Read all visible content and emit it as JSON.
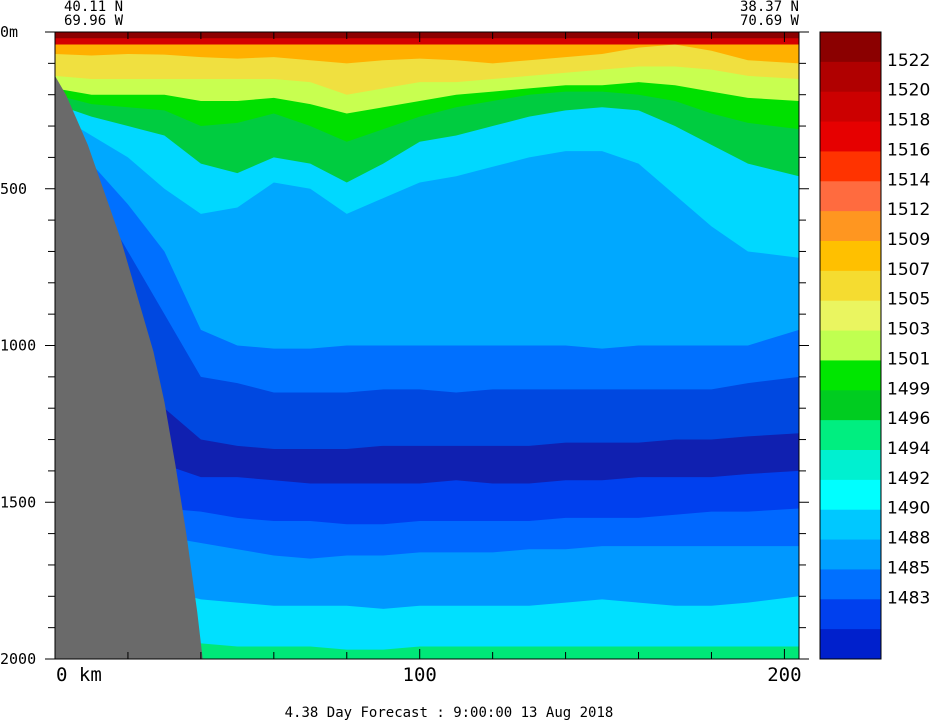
{
  "chart_data": {
    "type": "heatmap",
    "start_lat": "40.11 N",
    "start_lon": "69.96 W",
    "end_lat": "38.37 N",
    "end_lon": "70.69 W",
    "xlabel": "km",
    "x_ticks": [
      0,
      100,
      200
    ],
    "x_tick_labels": [
      "0 km",
      "100",
      "200"
    ],
    "xlim": [
      0,
      204
    ],
    "ylim": [
      0,
      2000
    ],
    "y_ticks": [
      0,
      500,
      1000,
      1500,
      2000
    ],
    "y_tick_labels": [
      "0m",
      "500",
      "1000",
      "1500",
      "2000"
    ],
    "footer": "4.38 Day Forecast :  9:00:00  13 Aug 2018",
    "colorbar_labels": [
      "1522",
      "1520",
      "1518",
      "1516",
      "1514",
      "1512",
      "1509",
      "1507",
      "1505",
      "1503",
      "1501",
      "1499",
      "1496",
      "1494",
      "1492",
      "1490",
      "1488",
      "1485",
      "1483"
    ],
    "colorbar_colors": [
      "#8b0000",
      "#b00000",
      "#cc0000",
      "#e60000",
      "#ff3300",
      "#ff6b3f",
      "#ff9620",
      "#ffc000",
      "#f5dc30",
      "#eaf560",
      "#c0ff50",
      "#00e600",
      "#00cc20",
      "#00ee80",
      "#00f0d0",
      "#00ffff",
      "#00c8ff",
      "#00a0ff",
      "#0070ff",
      "#0040ee",
      "#0020cc"
    ],
    "seafloor_color": "#6a6a6a",
    "sections": [
      {
        "x": [
          0,
          10,
          20,
          30,
          40,
          50,
          60,
          70,
          80,
          90,
          100,
          110,
          120,
          130,
          140,
          150,
          160,
          170,
          180,
          190,
          204
        ],
        "isolines_depth": [
          [
            20,
            20,
            20,
            20,
            20,
            20,
            20,
            20,
            20,
            20,
            20,
            20,
            20,
            20,
            20,
            20,
            20,
            20,
            20,
            20,
            20
          ],
          [
            40,
            40,
            40,
            40,
            40,
            40,
            40,
            40,
            40,
            40,
            40,
            40,
            40,
            40,
            40,
            40,
            40,
            40,
            40,
            40,
            40
          ],
          [
            70,
            75,
            70,
            72,
            80,
            85,
            80,
            90,
            100,
            90,
            85,
            90,
            100,
            90,
            80,
            70,
            50,
            40,
            60,
            90,
            100
          ],
          [
            140,
            150,
            150,
            150,
            150,
            150,
            150,
            160,
            200,
            180,
            160,
            160,
            150,
            140,
            130,
            120,
            110,
            110,
            120,
            140,
            150
          ],
          [
            180,
            200,
            200,
            200,
            220,
            220,
            210,
            230,
            260,
            240,
            220,
            200,
            190,
            180,
            170,
            170,
            160,
            170,
            190,
            210,
            220
          ],
          [
            200,
            230,
            240,
            250,
            300,
            290,
            260,
            300,
            350,
            310,
            270,
            240,
            220,
            200,
            190,
            190,
            200,
            220,
            260,
            290,
            310
          ],
          [
            230,
            270,
            300,
            330,
            420,
            450,
            400,
            420,
            480,
            420,
            350,
            330,
            300,
            270,
            250,
            240,
            250,
            300,
            360,
            420,
            460
          ],
          [
            260,
            330,
            400,
            500,
            580,
            560,
            480,
            500,
            580,
            530,
            480,
            460,
            430,
            400,
            380,
            380,
            420,
            520,
            620,
            700,
            720
          ],
          [
            300,
            420,
            550,
            700,
            950,
            1000,
            1010,
            1010,
            1000,
            1000,
            1000,
            1000,
            1000,
            1000,
            1000,
            1010,
            1000,
            1000,
            1000,
            1000,
            950
          ],
          [
            320,
            500,
            700,
            900,
            1100,
            1120,
            1150,
            1150,
            1150,
            1140,
            1140,
            1150,
            1140,
            1140,
            1140,
            1140,
            1140,
            1140,
            1140,
            1120,
            1100
          ],
          [
            340,
            600,
            900,
            1200,
            1300,
            1320,
            1330,
            1330,
            1330,
            1320,
            1320,
            1320,
            1320,
            1320,
            1310,
            1310,
            1310,
            1300,
            1300,
            1290,
            1280
          ],
          [
            360,
            700,
            1100,
            1380,
            1420,
            1420,
            1430,
            1440,
            1440,
            1440,
            1440,
            1430,
            1440,
            1440,
            1430,
            1430,
            1420,
            1420,
            1420,
            1410,
            1400
          ],
          [
            380,
            800,
            1300,
            1520,
            1530,
            1550,
            1560,
            1560,
            1570,
            1570,
            1560,
            1560,
            1560,
            1560,
            1550,
            1550,
            1550,
            1540,
            1530,
            1530,
            1520
          ],
          [
            400,
            900,
            1400,
            1610,
            1630,
            1650,
            1670,
            1680,
            1670,
            1670,
            1660,
            1660,
            1660,
            1650,
            1650,
            1640,
            1640,
            1640,
            1640,
            1640,
            1640
          ],
          [
            420,
            1000,
            1500,
            1780,
            1810,
            1820,
            1830,
            1830,
            1830,
            1840,
            1830,
            1830,
            1830,
            1830,
            1820,
            1810,
            1820,
            1830,
            1830,
            1820,
            1800
          ],
          [
            440,
            1100,
            1600,
            1930,
            1950,
            1960,
            1960,
            1960,
            1970,
            1970,
            1960,
            1960,
            1960,
            1960,
            1960,
            1960,
            1960,
            1960,
            1960,
            1960,
            1960
          ]
        ]
      }
    ],
    "seafloor_km": [
      0,
      3,
      6,
      9,
      12,
      15,
      18,
      21,
      24,
      27,
      30,
      33,
      36,
      39,
      40.5
    ],
    "seafloor_depth": [
      140,
      200,
      280,
      360,
      460,
      560,
      660,
      780,
      900,
      1020,
      1180,
      1380,
      1600,
      1850,
      2000
    ]
  }
}
